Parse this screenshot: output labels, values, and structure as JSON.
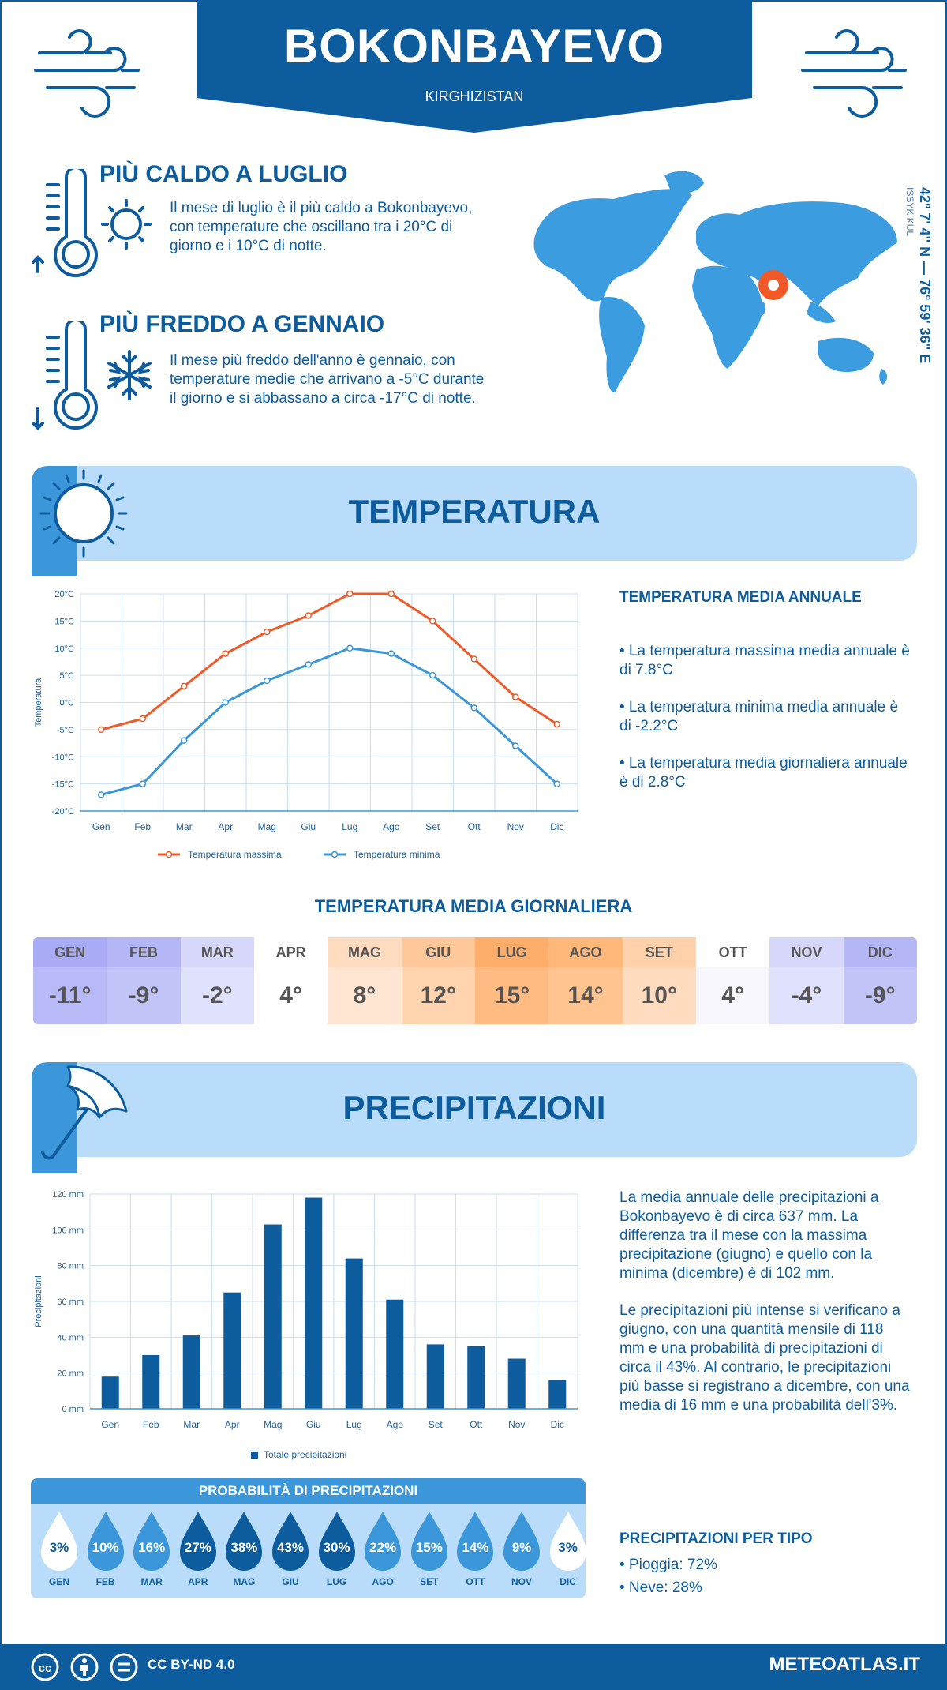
{
  "header": {
    "city": "BOKONBAYEVO",
    "country": "KIRGHIZISTAN"
  },
  "hot": {
    "title": "PIÙ CALDO A LUGLIO",
    "text": "Il mese di luglio è il più caldo a Bokonbayevo, con temperature che oscillano tra i 20°C di giorno e i 10°C di notte."
  },
  "cold": {
    "title": "PIÙ FREDDO A GENNAIO",
    "text": "Il mese più freddo dell'anno è gennaio, con temperature medie che arrivano a -5°C durante il giorno e si abbassano a circa -17°C di notte."
  },
  "location": {
    "coords": "42° 7' 4'' N — 76° 59' 36'' E",
    "region": "ISSYK KUL"
  },
  "temperature_section": {
    "title": "TEMPERATURA",
    "side_title": "TEMPERATURA MEDIA ANNUALE",
    "bullets": [
      "• La temperatura massima media annuale è di 7.8°C",
      "• La temperatura minima media annuale è di -2.2°C",
      "• La temperatura media giornaliera annuale è di 2.8°C"
    ]
  },
  "daily": {
    "title": "TEMPERATURA MEDIA GIORNALIERA",
    "months": [
      "GEN",
      "FEB",
      "MAR",
      "APR",
      "MAG",
      "GIU",
      "LUG",
      "AGO",
      "SET",
      "OTT",
      "NOV",
      "DIC"
    ],
    "values": [
      "-11°",
      "-9°",
      "-2°",
      "4°",
      "8°",
      "12°",
      "15°",
      "14°",
      "10°",
      "4°",
      "-4°",
      "-9°"
    ],
    "head_colors": [
      "#a9acf4",
      "#b4b6f6",
      "#d6d7fb",
      "#ffffff",
      "#ffdcc0",
      "#ffc89a",
      "#ffad6a",
      "#ffb87a",
      "#ffd2ac",
      "#ffffff",
      "#d6d7fb",
      "#b4b6f6"
    ],
    "val_colors": [
      "#b8baf7",
      "#c2c4f8",
      "#e0e1fc",
      "#ffffff",
      "#ffe6d2",
      "#ffd4ae",
      "#ffbb82",
      "#ffc48f",
      "#ffdcbf",
      "#f7f7fd",
      "#e0e1fc",
      "#c2c4f8"
    ]
  },
  "precip_section": {
    "title": "PRECIPITAZIONI",
    "p1": "La media annuale delle precipitazioni a Bokonbayevo è di circa 637 mm. La differenza tra il mese con la massima precipitazione (giugno) e quello con la minima (dicembre) è di 102 mm.",
    "p2": "Le precipitazioni più intense si verificano a giugno, con una quantità mensile di 118 mm e una probabilità di precipitazioni di circa il 43%. Al contrario, le precipitazioni più basse si registrano a dicembre, con una media di 16 mm e una probabilità dell'3%.",
    "type_title": "PRECIPITAZIONI PER TIPO",
    "types": [
      "• Pioggia: 72%",
      "• Neve: 28%"
    ]
  },
  "probability": {
    "title": "PROBABILITÀ DI PRECIPITAZIONI",
    "months": [
      "GEN",
      "FEB",
      "MAR",
      "APR",
      "MAG",
      "GIU",
      "LUG",
      "AGO",
      "SET",
      "OTT",
      "NOV",
      "DIC"
    ],
    "values": [
      "3%",
      "10%",
      "16%",
      "27%",
      "38%",
      "43%",
      "30%",
      "22%",
      "15%",
      "14%",
      "9%",
      "3%"
    ],
    "colors": [
      "#ffffff",
      "#3b97d9",
      "#3b97d9",
      "#0d5c9e",
      "#0d5c9e",
      "#0d5c9e",
      "#0d5c9e",
      "#3b97d9",
      "#3b97d9",
      "#3b97d9",
      "#3b97d9",
      "#ffffff"
    ]
  },
  "footer": {
    "license": "CC BY-ND 4.0",
    "brand": "METEOATLAS.IT"
  },
  "chart_data": [
    {
      "type": "line",
      "x": [
        "Gen",
        "Feb",
        "Mar",
        "Apr",
        "Mag",
        "Giu",
        "Lug",
        "Ago",
        "Set",
        "Ott",
        "Nov",
        "Dic"
      ],
      "ylabel": "Temperatura",
      "ylim": [
        -20,
        20
      ],
      "yticks": [
        "20°C",
        "15°C",
        "10°C",
        "5°C",
        "0°C",
        "-5°C",
        "-10°C",
        "-15°C",
        "-20°C"
      ],
      "series": [
        {
          "name": "Temperatura massima",
          "color": "#f05a28",
          "values": [
            -5,
            -3,
            3,
            9,
            13,
            16,
            20,
            20,
            15,
            8,
            1,
            -4
          ]
        },
        {
          "name": "Temperatura minima",
          "color": "#3b97d9",
          "values": [
            -17,
            -15,
            -7,
            0,
            4,
            7,
            10,
            9,
            5,
            -1,
            -8,
            -15
          ]
        }
      ],
      "grid": true,
      "legend": "bottom"
    },
    {
      "type": "bar",
      "categories": [
        "Gen",
        "Feb",
        "Mar",
        "Apr",
        "Mag",
        "Giu",
        "Lug",
        "Ago",
        "Set",
        "Ott",
        "Nov",
        "Dic"
      ],
      "ylabel": "Precipitazioni",
      "ylim": [
        0,
        120
      ],
      "yticks": [
        "120 mm",
        "100 mm",
        "80 mm",
        "60 mm",
        "40 mm",
        "20 mm",
        "0 mm"
      ],
      "series": [
        {
          "name": "Totale precipitazioni",
          "color": "#0d5c9e",
          "values": [
            18,
            30,
            41,
            65,
            103,
            118,
            84,
            61,
            36,
            35,
            28,
            16
          ]
        }
      ],
      "grid": true,
      "legend": "bottom"
    }
  ]
}
